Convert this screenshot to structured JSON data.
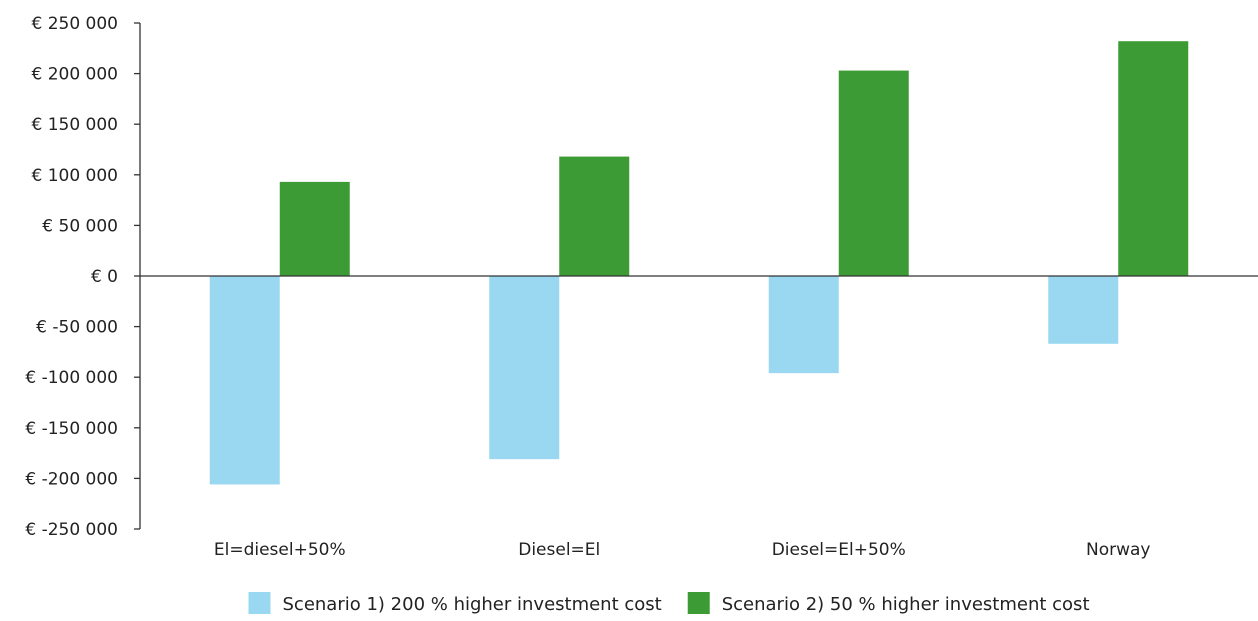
{
  "chart_data": {
    "type": "bar",
    "title": "",
    "xlabel": "",
    "ylabel": "",
    "categories": [
      "El=diesel+50%",
      "Diesel=El",
      "Diesel=El+50%",
      "Norway"
    ],
    "series": [
      {
        "name": "Scenario 1) 200 % higher investment cost",
        "values": [
          -206000,
          -181000,
          -96000,
          -67000
        ],
        "color": "#9ad8f1"
      },
      {
        "name": "Scenario 2) 50 % higher investment cost",
        "values": [
          93000,
          118000,
          203000,
          232000
        ],
        "color": "#3d9b35"
      }
    ],
    "ylim": [
      -250000,
      250000
    ],
    "yticks": [
      250000,
      200000,
      150000,
      100000,
      50000,
      0,
      -50000,
      -100000,
      -150000,
      -200000,
      -250000
    ],
    "ytick_labels": [
      "€ 250 000",
      "€ 200 000",
      "€ 150 000",
      "€ 100 000",
      "€ 50 000",
      "€ 0",
      "€ -50 000",
      "€ -100 000",
      "€ -150 000",
      "€ -200 000",
      "€ -250 000"
    ],
    "grid": false,
    "legend_position": "bottom"
  }
}
